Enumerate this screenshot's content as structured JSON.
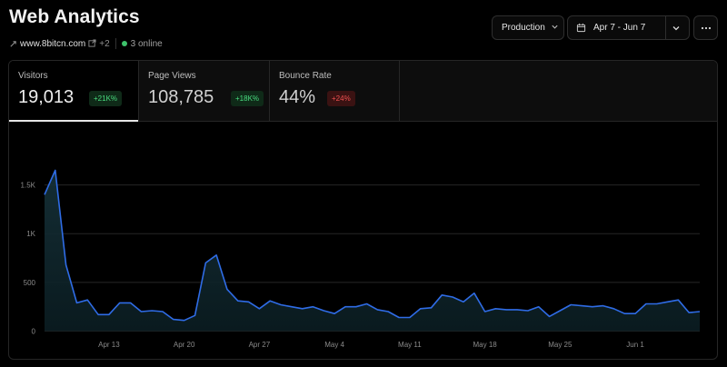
{
  "header": {
    "title": "Web Analytics",
    "domain": "www.8bitcn.com",
    "more_domains": "+2",
    "online": "3 online"
  },
  "toolbar": {
    "environment": "Production",
    "date_range": "Apr 7 - Jun 7"
  },
  "tabs": [
    {
      "label": "Visitors",
      "value": "19,013",
      "delta": "+21K%",
      "trend": "up"
    },
    {
      "label": "Page Views",
      "value": "108,785",
      "delta": "+18K%",
      "trend": "up"
    },
    {
      "label": "Bounce Rate",
      "value": "44%",
      "delta": "+24%",
      "trend": "down"
    }
  ],
  "colors": {
    "line": "#2f6ce6",
    "positive": "#4ade80",
    "negative": "#f05050"
  },
  "chart_data": {
    "type": "area",
    "y_ticks": [
      "0",
      "500",
      "1K",
      "1.5K"
    ],
    "y_tick_values": [
      0,
      500,
      1000,
      1500
    ],
    "x_ticks": [
      "Apr 13",
      "Apr 20",
      "Apr 27",
      "May 4",
      "May 11",
      "May 18",
      "May 25",
      "Jun 1"
    ],
    "x_tick_dates": [
      "2024-04-13",
      "2024-04-20",
      "2024-04-27",
      "2024-05-04",
      "2024-05-11",
      "2024-05-18",
      "2024-05-25",
      "2024-06-01"
    ],
    "x_start": "2024-04-07",
    "x_end": "2024-06-07",
    "ylim": [
      0,
      1650
    ],
    "grid": true,
    "series": [
      {
        "values": [
          1400,
          1650,
          680,
          290,
          320,
          170,
          170,
          290,
          290,
          200,
          210,
          200,
          120,
          110,
          160,
          700,
          780,
          430,
          310,
          300,
          230,
          310,
          270,
          250,
          230,
          250,
          210,
          180,
          250,
          250,
          280,
          220,
          200,
          140,
          140,
          230,
          240,
          370,
          350,
          300,
          390,
          200,
          230,
          220,
          220,
          210,
          250,
          150,
          210,
          270,
          260,
          250,
          260,
          230,
          180,
          180,
          280,
          280,
          300,
          320,
          190,
          200
        ]
      }
    ]
  }
}
